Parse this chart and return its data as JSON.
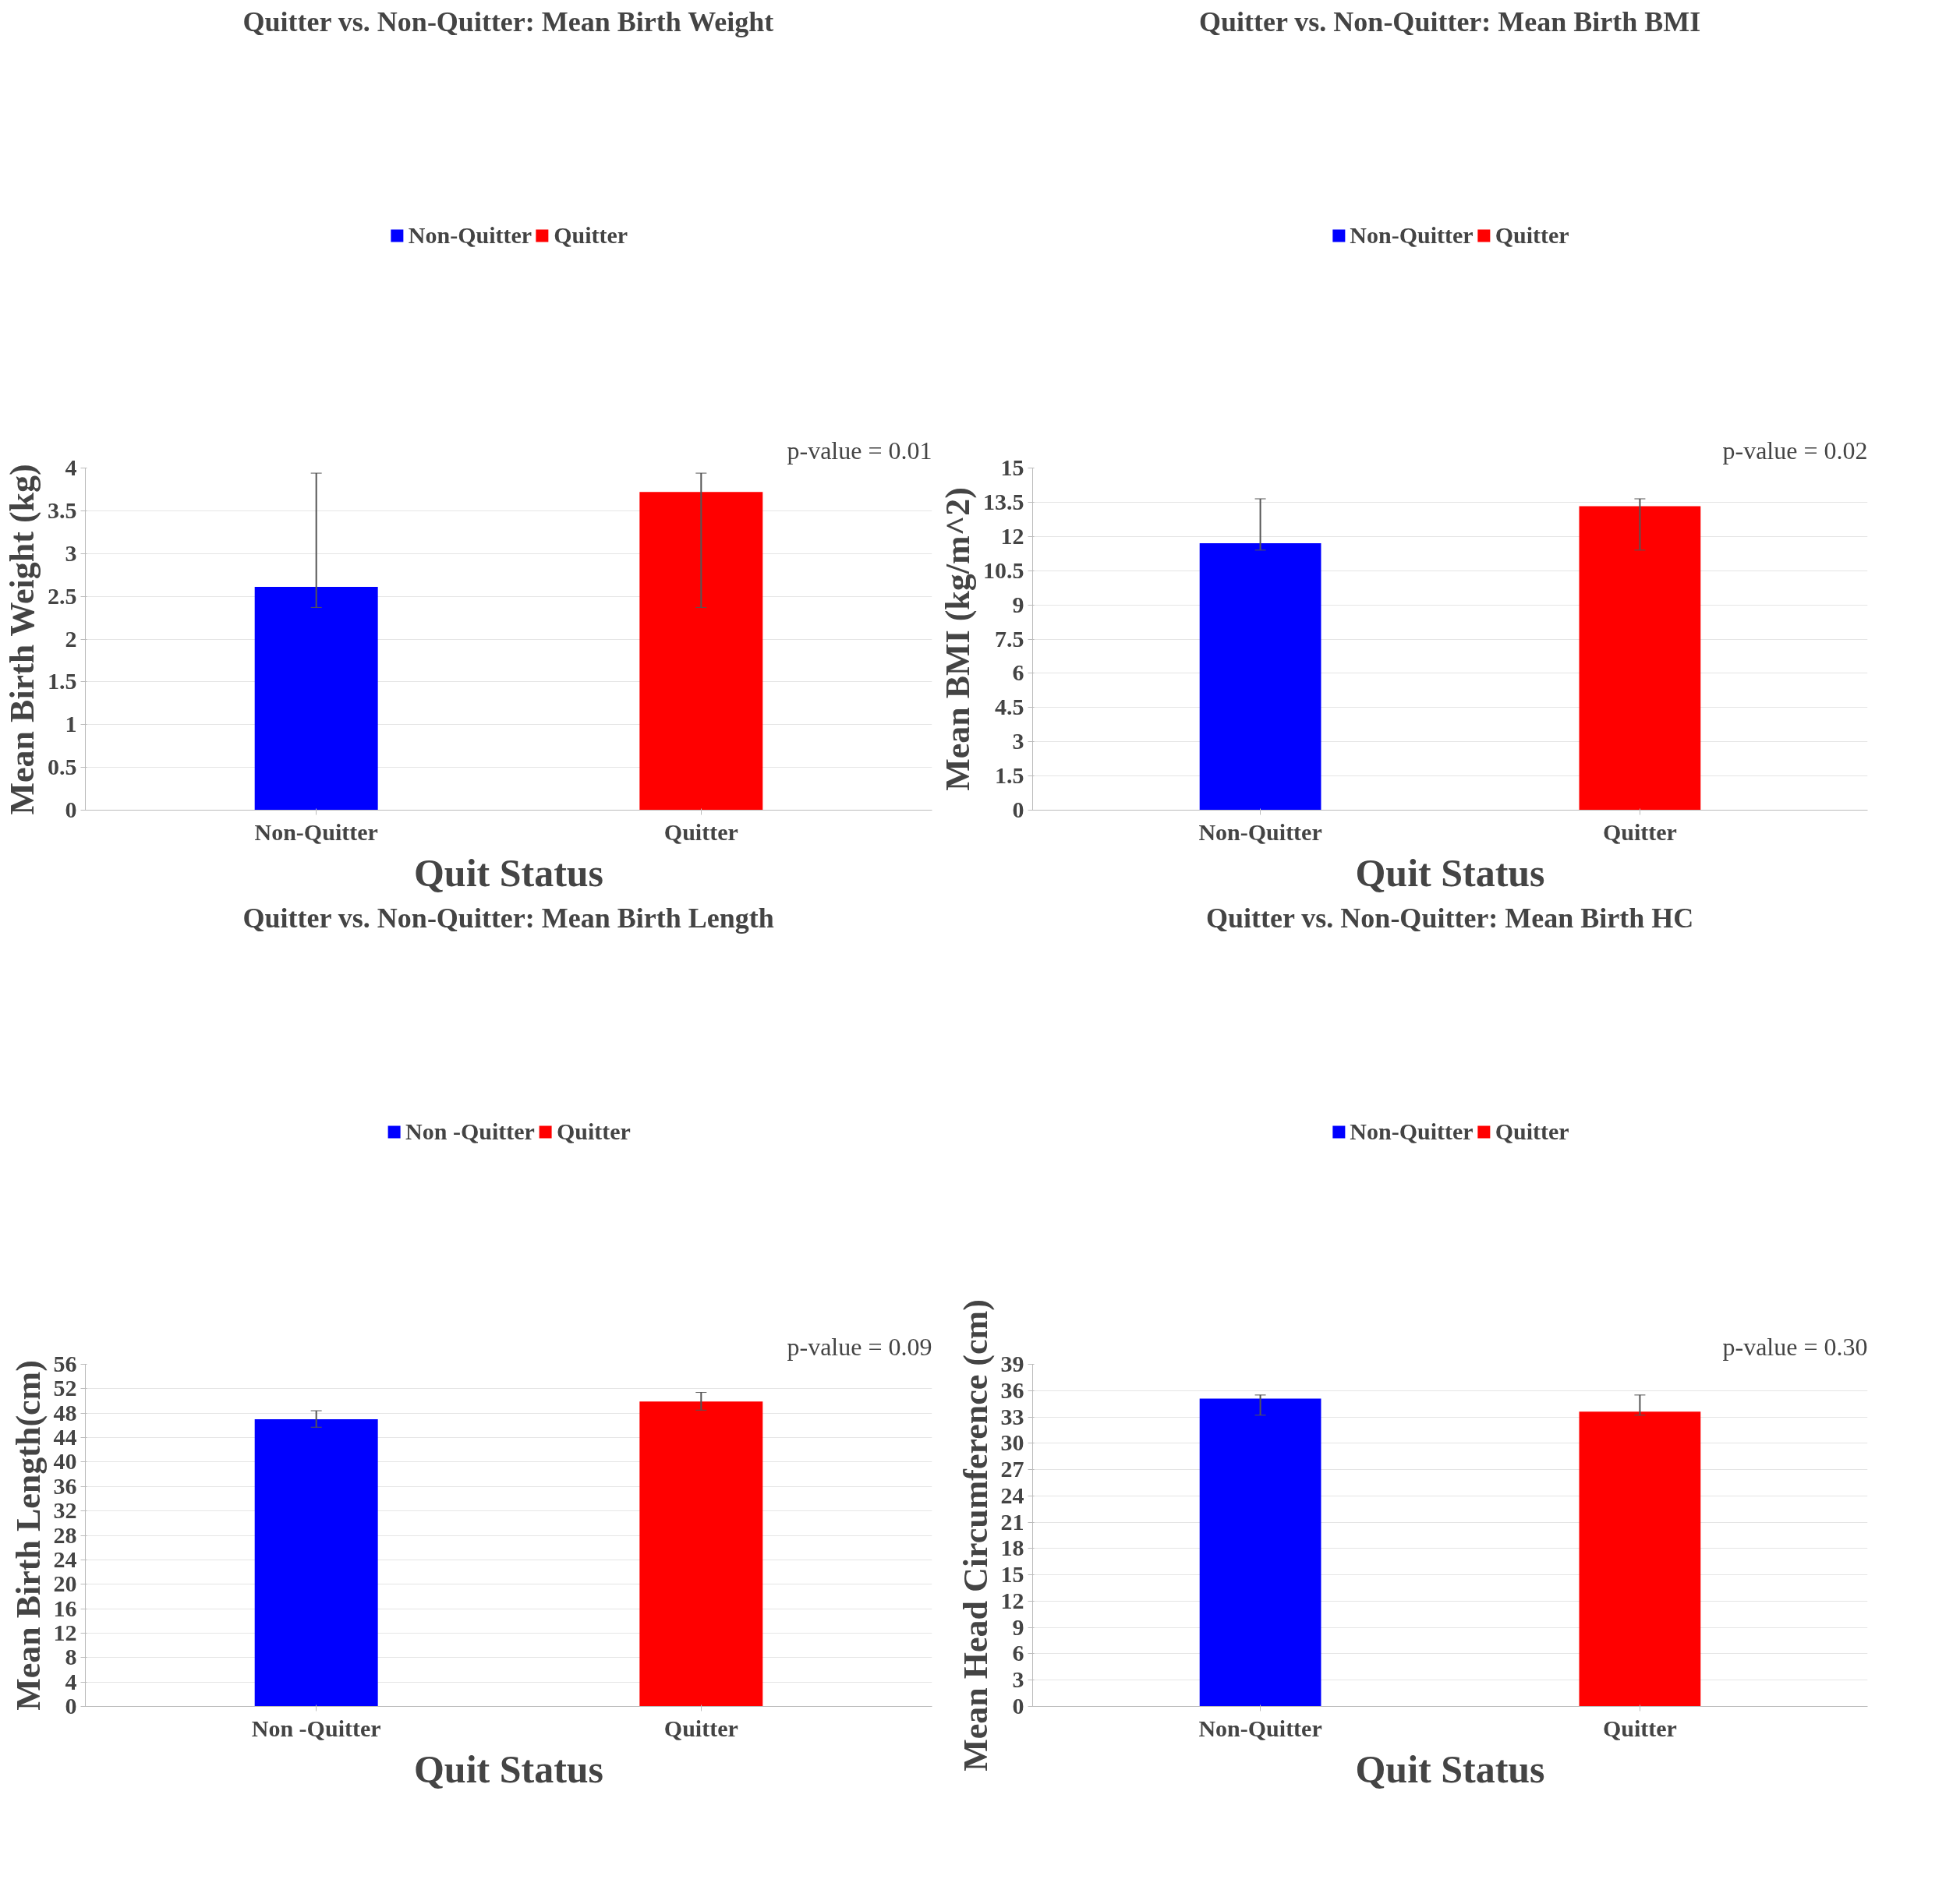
{
  "chart_data": [
    {
      "type": "bar",
      "title": "Quitter vs. Non-Quitter: Mean Birth Weight",
      "xlabel": "Quit Status",
      "ylabel": "Mean Birth Weight (kg)",
      "categories": [
        "Non-Quitter",
        "Quitter"
      ],
      "series": [
        {
          "name": "Non-Quitter",
          "color": "#0000ff",
          "values": [
            2.61,
            null
          ],
          "errors": [
            [
              2.37,
              3.94
            ],
            null
          ]
        },
        {
          "name": "Quitter",
          "color": "#ff0000",
          "values": [
            null,
            3.72
          ],
          "errors": [
            null,
            [
              2.37,
              3.94
            ]
          ]
        }
      ],
      "ylim": [
        0,
        4
      ],
      "yticks": [
        0,
        0.5,
        1,
        1.5,
        2,
        2.5,
        3,
        3.5,
        4
      ],
      "grid": "y",
      "legend": "top",
      "annotations": [
        "p-value = 0.01"
      ]
    },
    {
      "type": "bar",
      "title": "Quitter vs. Non-Quitter: Mean Birth BMI",
      "xlabel": "Quit Status",
      "ylabel": "Mean BMI (kg/m^2)",
      "categories": [
        "Non-Quitter",
        "Quitter"
      ],
      "series": [
        {
          "name": "Non-Quitter",
          "color": "#0000ff",
          "values": [
            11.7,
            null
          ],
          "errors": [
            [
              11.4,
              13.65
            ],
            null
          ]
        },
        {
          "name": "Quitter",
          "color": "#ff0000",
          "values": [
            null,
            13.33
          ],
          "errors": [
            null,
            [
              11.4,
              13.65
            ]
          ]
        }
      ],
      "ylim": [
        0,
        15
      ],
      "yticks": [
        0,
        1.5,
        3,
        4.5,
        6,
        7.5,
        9,
        10.5,
        12,
        13.5,
        15
      ],
      "grid": "y",
      "legend": "top",
      "annotations": [
        "p-value = 0.02"
      ]
    },
    {
      "type": "bar",
      "title": "Quitter vs. Non-Quitter: Mean Birth Length",
      "xlabel": "Quit Status",
      "ylabel": "Mean Birth Length(cm)",
      "categories": [
        "Non -Quitter",
        "Quitter"
      ],
      "series": [
        {
          "name": "Non -Quitter",
          "color": "#0000ff",
          "values": [
            47.0,
            null
          ],
          "errors": [
            [
              45.7,
              48.4
            ],
            null
          ]
        },
        {
          "name": "Quitter",
          "color": "#ff0000",
          "values": [
            null,
            49.9
          ],
          "errors": [
            null,
            [
              48.5,
              51.4
            ]
          ]
        }
      ],
      "ylim": [
        0,
        56
      ],
      "yticks": [
        0,
        4,
        8,
        12,
        16,
        20,
        24,
        28,
        32,
        36,
        40,
        44,
        48,
        52,
        56
      ],
      "grid": "y",
      "legend": "top",
      "annotations": [
        "p-value = 0.09"
      ]
    },
    {
      "type": "bar",
      "title": "Quitter vs. Non-Quitter: Mean Birth HC",
      "xlabel": "Quit Status",
      "ylabel": "Mean Head Circumference (cm)",
      "categories": [
        "Non-Quitter",
        "Quitter"
      ],
      "series": [
        {
          "name": "Non-Quitter",
          "color": "#0000ff",
          "values": [
            35.1,
            null
          ],
          "errors": [
            [
              33.2,
              35.5
            ],
            null
          ]
        },
        {
          "name": "Quitter",
          "color": "#ff0000",
          "values": [
            null,
            33.6
          ],
          "errors": [
            null,
            [
              33.2,
              35.5
            ]
          ]
        }
      ],
      "ylim": [
        0,
        39
      ],
      "yticks": [
        0,
        3,
        6,
        9,
        12,
        15,
        18,
        21,
        24,
        27,
        30,
        33,
        36,
        39
      ],
      "grid": "y",
      "legend": "top",
      "annotations": [
        "p-value = 0.30"
      ]
    }
  ]
}
